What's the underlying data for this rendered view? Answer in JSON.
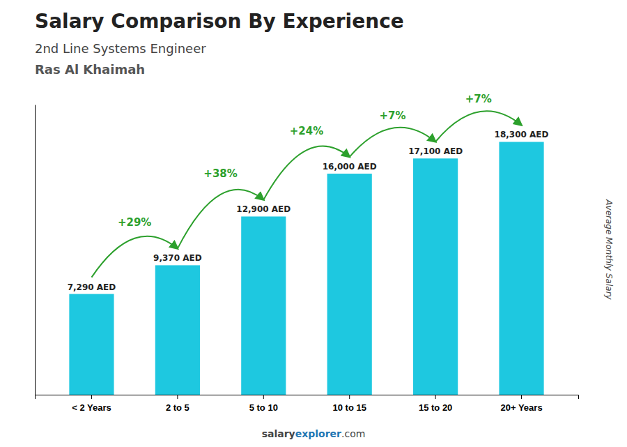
{
  "chart_data": {
    "type": "bar",
    "title": "Salary Comparison By Experience",
    "subtitle": "2nd Line Systems Engineer",
    "annotations": [
      "Ras Al Khaimah",
      "salary",
      "explorer",
      ".com"
    ],
    "ylabel": "Average Monthly Salary",
    "categories": [
      "< 2 Years",
      "2 to 5",
      "5 to 10",
      "10 to 15",
      "15 to 20",
      "20+ Years"
    ],
    "values": [
      7290,
      9370,
      12900,
      16000,
      17100,
      18300
    ],
    "value_labels": [
      "7,290 AED",
      "9,370 AED",
      "12,900 AED",
      "16,000 AED",
      "17,100 AED",
      "18,300 AED"
    ],
    "change_labels": [
      null,
      "+29%",
      "+38%",
      "+24%",
      "+7%",
      "+7%"
    ],
    "color": "#1ec8e0",
    "ylim": [
      0,
      21000
    ],
    "data_labels": true,
    "tick_labels": "x",
    "grid": false
  }
}
